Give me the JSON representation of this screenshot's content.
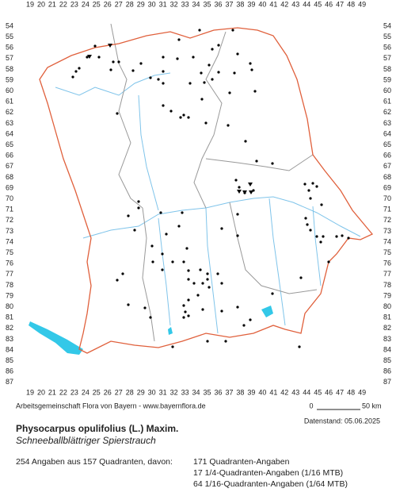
{
  "map": {
    "x_labels": [
      19,
      20,
      21,
      22,
      23,
      24,
      25,
      26,
      27,
      28,
      29,
      30,
      31,
      32,
      33,
      34,
      35,
      36,
      37,
      38,
      39,
      40,
      41,
      42,
      43,
      44,
      45,
      46,
      47,
      48,
      49
    ],
    "y_labels": [
      54,
      55,
      56,
      57,
      58,
      59,
      60,
      61,
      62,
      63,
      64,
      65,
      66,
      67,
      68,
      69,
      70,
      71,
      72,
      73,
      74,
      75,
      76,
      77,
      78,
      79,
      80,
      81,
      82,
      83,
      84,
      85,
      86,
      87
    ],
    "credit": "Arbeitsgemeinschaft Flora von Bayern - www.bayernflora.de",
    "scale_start": "0",
    "scale_end": "50 km",
    "date": "Datenstand: 05.06.2025",
    "species": "Physocarpus opulifolius (L.) Maxim.",
    "common_name": "Schneeballblättriger Spierstrauch",
    "summary": "254 Angaben aus 157 Quadranten, davon:",
    "breakdown": [
      "171 Quadranten-Angaben",
      "17 1/4-Quadranten-Angaben (1/16 MTB)",
      "64 1/16-Quadranten-Angaben (1/64 MTB)"
    ]
  }
}
